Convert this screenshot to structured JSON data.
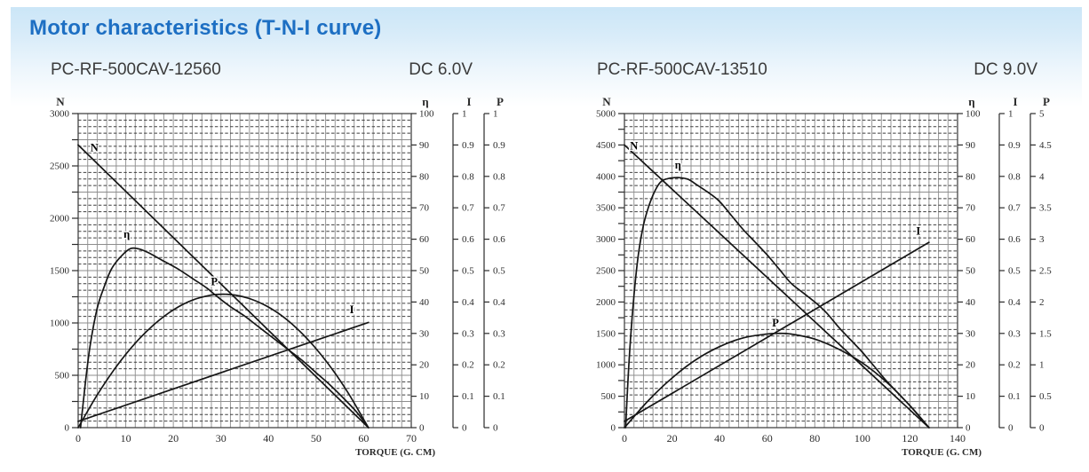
{
  "title": "Motor characteristics (T-N-I curve)",
  "colors": {
    "title_blue": "#1d6fc3",
    "header_gradient_top": "#cbe6f7",
    "header_gradient_bottom": "#ffffff",
    "curve": "#161616",
    "grid_vertical": "#979797",
    "grid_major_horizontal": "#8d8d8d",
    "grid_minor_horizontal": "#3f3f3f",
    "plot_border": "#444444",
    "axis_text": "#2b2b2b"
  },
  "chart_data": [
    {
      "type": "line",
      "model": "PC-RF-500CAV-12560",
      "voltage": "DC  6.0V",
      "x_axis": {
        "label": "TORQUE (G. CM)",
        "min": 0,
        "max": 70,
        "label_step": 10,
        "grid_step": 2
      },
      "y_axes": [
        {
          "id": "N",
          "header": "N",
          "min": 0,
          "max": 3000,
          "label_step": 500,
          "tick_step": 250
        },
        {
          "id": "eta",
          "header": "η",
          "min": 0,
          "max": 100,
          "label_step": 10
        },
        {
          "id": "I",
          "header": "I",
          "min": 0,
          "max": 1,
          "label_step": 0.1
        },
        {
          "id": "P",
          "header": "P",
          "min": 0,
          "max": 1,
          "label_step": 0.1
        }
      ],
      "stall_torque": 61,
      "series": [
        {
          "name": "N",
          "scale": "N",
          "label_xy": [
            3.4,
            2640
          ],
          "points": [
            [
              0,
              2700
            ],
            [
              61,
              0
            ]
          ]
        },
        {
          "name": "η",
          "scale": "eta",
          "label_xy": [
            10.2,
            60.5
          ],
          "points": [
            [
              0.5,
              0
            ],
            [
              1.5,
              14
            ],
            [
              2.5,
              26
            ],
            [
              4,
              38
            ],
            [
              5.5,
              45
            ],
            [
              7,
              50.5
            ],
            [
              9,
              54.5
            ],
            [
              11,
              57
            ],
            [
              13,
              56.8
            ],
            [
              15,
              55.5
            ],
            [
              18,
              53
            ],
            [
              21,
              50.5
            ],
            [
              24,
              47.5
            ],
            [
              27,
              44.5
            ],
            [
              29,
              42
            ],
            [
              32,
              38.5
            ],
            [
              35,
              35.5
            ],
            [
              38,
              32
            ],
            [
              41,
              28.5
            ],
            [
              44,
              25
            ],
            [
              47,
              21.5
            ],
            [
              50,
              17.5
            ],
            [
              53,
              13.5
            ],
            [
              56,
              9
            ],
            [
              58.5,
              5
            ],
            [
              61,
              0
            ]
          ]
        },
        {
          "name": "P",
          "scale": "P",
          "label_xy": [
            28.6,
            0.453
          ],
          "points": [
            [
              0,
              0
            ],
            [
              4,
              0.104
            ],
            [
              8,
              0.194
            ],
            [
              12,
              0.269
            ],
            [
              16,
              0.329
            ],
            [
              20,
              0.375
            ],
            [
              24,
              0.406
            ],
            [
              28,
              0.422
            ],
            [
              30.5,
              0.425
            ],
            [
              33,
              0.422
            ],
            [
              36,
              0.411
            ],
            [
              39,
              0.392
            ],
            [
              42,
              0.365
            ],
            [
              45,
              0.329
            ],
            [
              48,
              0.285
            ],
            [
              51,
              0.233
            ],
            [
              54,
              0.173
            ],
            [
              57,
              0.104
            ],
            [
              61,
              0
            ]
          ]
        },
        {
          "name": "I",
          "scale": "I",
          "label_xy": [
            57.5,
            0.365
          ],
          "points": [
            [
              0,
              0.02
            ],
            [
              61,
              0.335
            ]
          ]
        }
      ]
    },
    {
      "type": "line",
      "model": "PC-RF-500CAV-13510",
      "voltage": "DC 9.0V",
      "x_axis": {
        "label": "TORQUE (G. CM)",
        "min": 0,
        "max": 140,
        "label_step": 20,
        "grid_step": 4
      },
      "y_axes": [
        {
          "id": "N",
          "header": "N",
          "min": 0,
          "max": 5000,
          "label_step": 500,
          "tick_step": 250
        },
        {
          "id": "eta",
          "header": "η",
          "min": 0,
          "max": 100,
          "label_step": 10
        },
        {
          "id": "I",
          "header": "I",
          "min": 0,
          "max": 1,
          "label_step": 0.1
        },
        {
          "id": "P",
          "header": "P",
          "min": 0,
          "max": 5,
          "label_step": 0.5
        }
      ],
      "stall_torque": 128,
      "series": [
        {
          "name": "N",
          "scale": "N",
          "label_xy": [
            4,
            4430
          ],
          "points": [
            [
              0,
              4500
            ],
            [
              128,
              0
            ]
          ]
        },
        {
          "name": "η",
          "scale": "eta",
          "label_xy": [
            22.5,
            82.5
          ],
          "points": [
            [
              0.5,
              0
            ],
            [
              2,
              22
            ],
            [
              4,
              42
            ],
            [
              6,
              56
            ],
            [
              8,
              64.5
            ],
            [
              10,
              70
            ],
            [
              12,
              74
            ],
            [
              14,
              77
            ],
            [
              16,
              78.7
            ],
            [
              19,
              79.4
            ],
            [
              23,
              79.6
            ],
            [
              27,
              79
            ],
            [
              30,
              77.5
            ],
            [
              35,
              75
            ],
            [
              40,
              72
            ],
            [
              45,
              67.5
            ],
            [
              50,
              63
            ],
            [
              55,
              59
            ],
            [
              60,
              55
            ],
            [
              65,
              50.5
            ],
            [
              70,
              46
            ],
            [
              75,
              43
            ],
            [
              80,
              40
            ],
            [
              85,
              36.5
            ],
            [
              90,
              32
            ],
            [
              95,
              28
            ],
            [
              100,
              24
            ],
            [
              105,
              19.5
            ],
            [
              110,
              15
            ],
            [
              115,
              11
            ],
            [
              120,
              7
            ],
            [
              124,
              3.5
            ],
            [
              128,
              0
            ]
          ]
        },
        {
          "name": "P",
          "scale": "P",
          "label_xy": [
            63.5,
            1.61
          ],
          "points": [
            [
              0,
              0
            ],
            [
              10,
              0.43
            ],
            [
              20,
              0.79
            ],
            [
              30,
              1.08
            ],
            [
              40,
              1.29
            ],
            [
              50,
              1.43
            ],
            [
              60,
              1.49
            ],
            [
              64,
              1.5
            ],
            [
              70,
              1.49
            ],
            [
              80,
              1.41
            ],
            [
              90,
              1.25
            ],
            [
              100,
              1.03
            ],
            [
              110,
              0.73
            ],
            [
              120,
              0.35
            ],
            [
              128,
              0
            ]
          ]
        },
        {
          "name": "I",
          "scale": "I",
          "label_xy": [
            123.5,
            0.615
          ],
          "points": [
            [
              0,
              0.02
            ],
            [
              128,
              0.59
            ]
          ]
        }
      ]
    }
  ]
}
